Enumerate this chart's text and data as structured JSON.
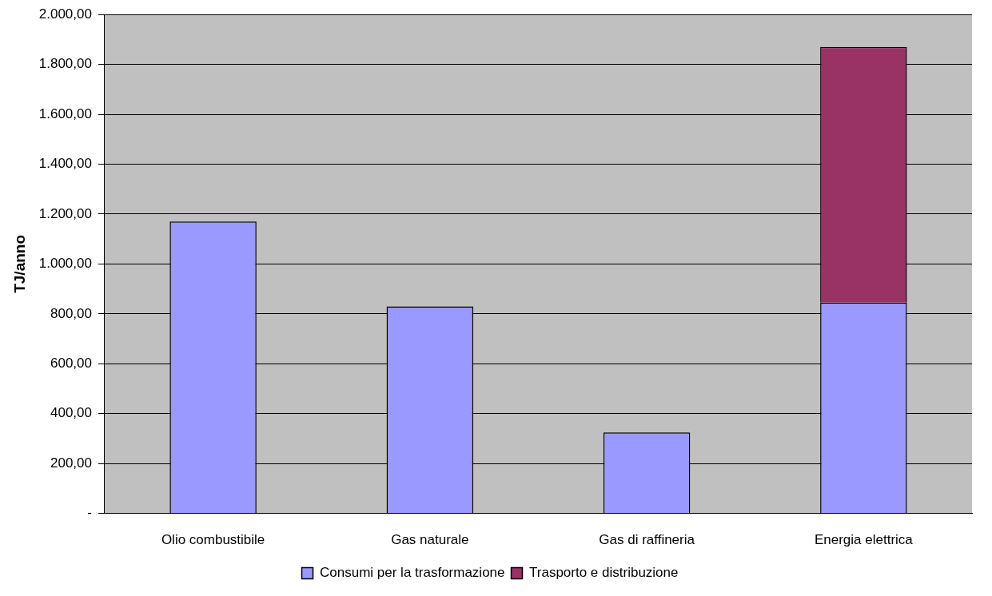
{
  "chart_data": {
    "type": "bar",
    "ylabel": "TJ/anno",
    "categories": [
      "Olio combustibile",
      "Gas naturale",
      "Gas di raffineria",
      "Energia elettrica"
    ],
    "series": [
      {
        "name": "Consumi per la trasformazione",
        "color": "#9999ff",
        "values": [
          1170,
          830,
          325,
          845
        ]
      },
      {
        "name": "Trasporto e distribuzione",
        "color": "#993366",
        "values": [
          null,
          null,
          null,
          1025
        ]
      }
    ],
    "stacked": true,
    "ylim": [
      0,
      2000
    ],
    "yticks": [
      {
        "value": 0,
        "label": "-"
      },
      {
        "value": 200,
        "label": "200,00"
      },
      {
        "value": 400,
        "label": "400,00"
      },
      {
        "value": 600,
        "label": "600,00"
      },
      {
        "value": 800,
        "label": "800,00"
      },
      {
        "value": 1000,
        "label": "1.000,00"
      },
      {
        "value": 1200,
        "label": "1.200,00"
      },
      {
        "value": 1400,
        "label": "1.400,00"
      },
      {
        "value": 1600,
        "label": "1.600,00"
      },
      {
        "value": 1800,
        "label": "1.800,00"
      },
      {
        "value": 2000,
        "label": "2.000,00"
      }
    ],
    "grid": "y",
    "legend": "bottom"
  }
}
